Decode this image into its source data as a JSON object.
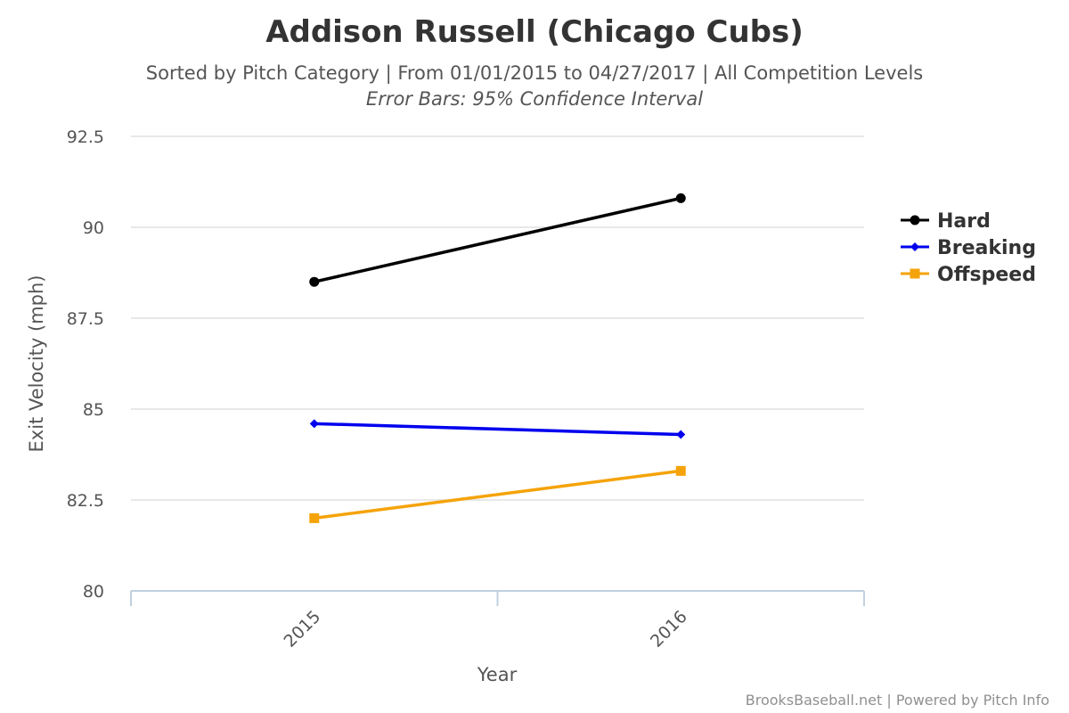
{
  "chart_data": {
    "type": "line",
    "title": "Addison Russell (Chicago Cubs)",
    "subtitle": "Sorted by Pitch Category | From 01/01/2015 to 04/27/2017 | All Competition Levels",
    "subtitle2": "Error Bars: 95% Confidence Interval",
    "xlabel": "Year",
    "ylabel": "Exit Velocity (mph)",
    "categories": [
      "2015",
      "2016"
    ],
    "ylim": [
      80,
      92.5
    ],
    "yticks": [
      "92.5",
      "90",
      "87.5",
      "85",
      "82.5",
      "80"
    ],
    "grid": true,
    "legend_position": "right",
    "series": [
      {
        "name": "Hard",
        "values": [
          88.5,
          90.8
        ],
        "color": "#000000",
        "marker": "circle"
      },
      {
        "name": "Breaking",
        "values": [
          84.6,
          84.3
        ],
        "color": "#0000ee",
        "marker": "diamond"
      },
      {
        "name": "Offspeed",
        "values": [
          82.0,
          83.3
        ],
        "color": "#f5a30a",
        "marker": "square"
      }
    ]
  },
  "credits": "BrooksBaseball.net | Powered by Pitch Info"
}
